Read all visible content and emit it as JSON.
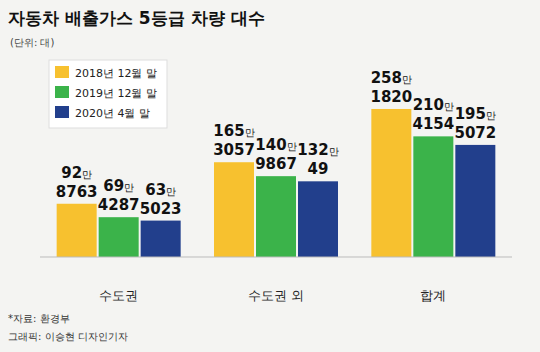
{
  "chart_data": {
    "type": "bar",
    "title": "자동차 배출가스 5등급 차량 대수",
    "subtitle": "(단위: 대)",
    "annotations": [
      "*자료: 환경부",
      "그래픽: 이승현 디자인기자"
    ],
    "categories": [
      "수도권",
      "수도권 외",
      "합계"
    ],
    "series": [
      {
        "name": "2018년 12월 말",
        "color": "#f7c12f",
        "values": [
          928763,
          1653057,
          2581820
        ],
        "value_labels": [
          "92만 8763",
          "165만 3057",
          "258만 1820"
        ]
      },
      {
        "name": "2019년 12월 말",
        "color": "#3bb34a",
        "values": [
          694287,
          1409867,
          2104154
        ],
        "value_labels": [
          "69만 4287",
          "140만 9867",
          "210만 4154"
        ]
      },
      {
        "name": "2020년 4월 말",
        "color": "#223f8c",
        "values": [
          635023,
          1320049,
          1955072
        ],
        "value_labels": [
          "63만 5023",
          "132만 49",
          "195만 5072"
        ]
      }
    ],
    "ylim": [
      0,
      3000000
    ],
    "tick_labels": "x",
    "legend": "upper left",
    "data_labels": true
  }
}
